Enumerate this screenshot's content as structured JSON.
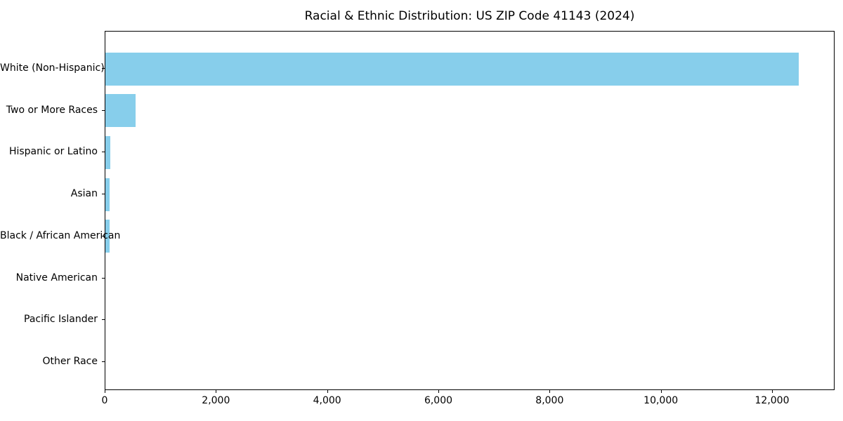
{
  "figure": {
    "background_color": "#ffffff",
    "frame_color": "#000000",
    "text_color": "#000000"
  },
  "chart_data": {
    "type": "bar",
    "orientation": "horizontal",
    "title": "Racial & Ethnic Distribution: US ZIP Code 41143 (2024)",
    "categories": [
      "White (Non-Hispanic)",
      "Two or More Races",
      "Hispanic or Latino",
      "Asian",
      "Black / African American",
      "Native American",
      "Pacific Islander",
      "Other Race"
    ],
    "values": [
      12470,
      540,
      90,
      80,
      75,
      0,
      0,
      0
    ],
    "bar_color": "#87CEEB",
    "xlabel": "",
    "ylabel": "",
    "xlim": [
      0,
      13124
    ],
    "xticks": [
      0,
      2000,
      4000,
      6000,
      8000,
      10000,
      12000
    ],
    "xtick_labels": [
      "0",
      "2,000",
      "4,000",
      "6,000",
      "8,000",
      "10,000",
      "12,000"
    ],
    "grid": false,
    "legend": null
  }
}
